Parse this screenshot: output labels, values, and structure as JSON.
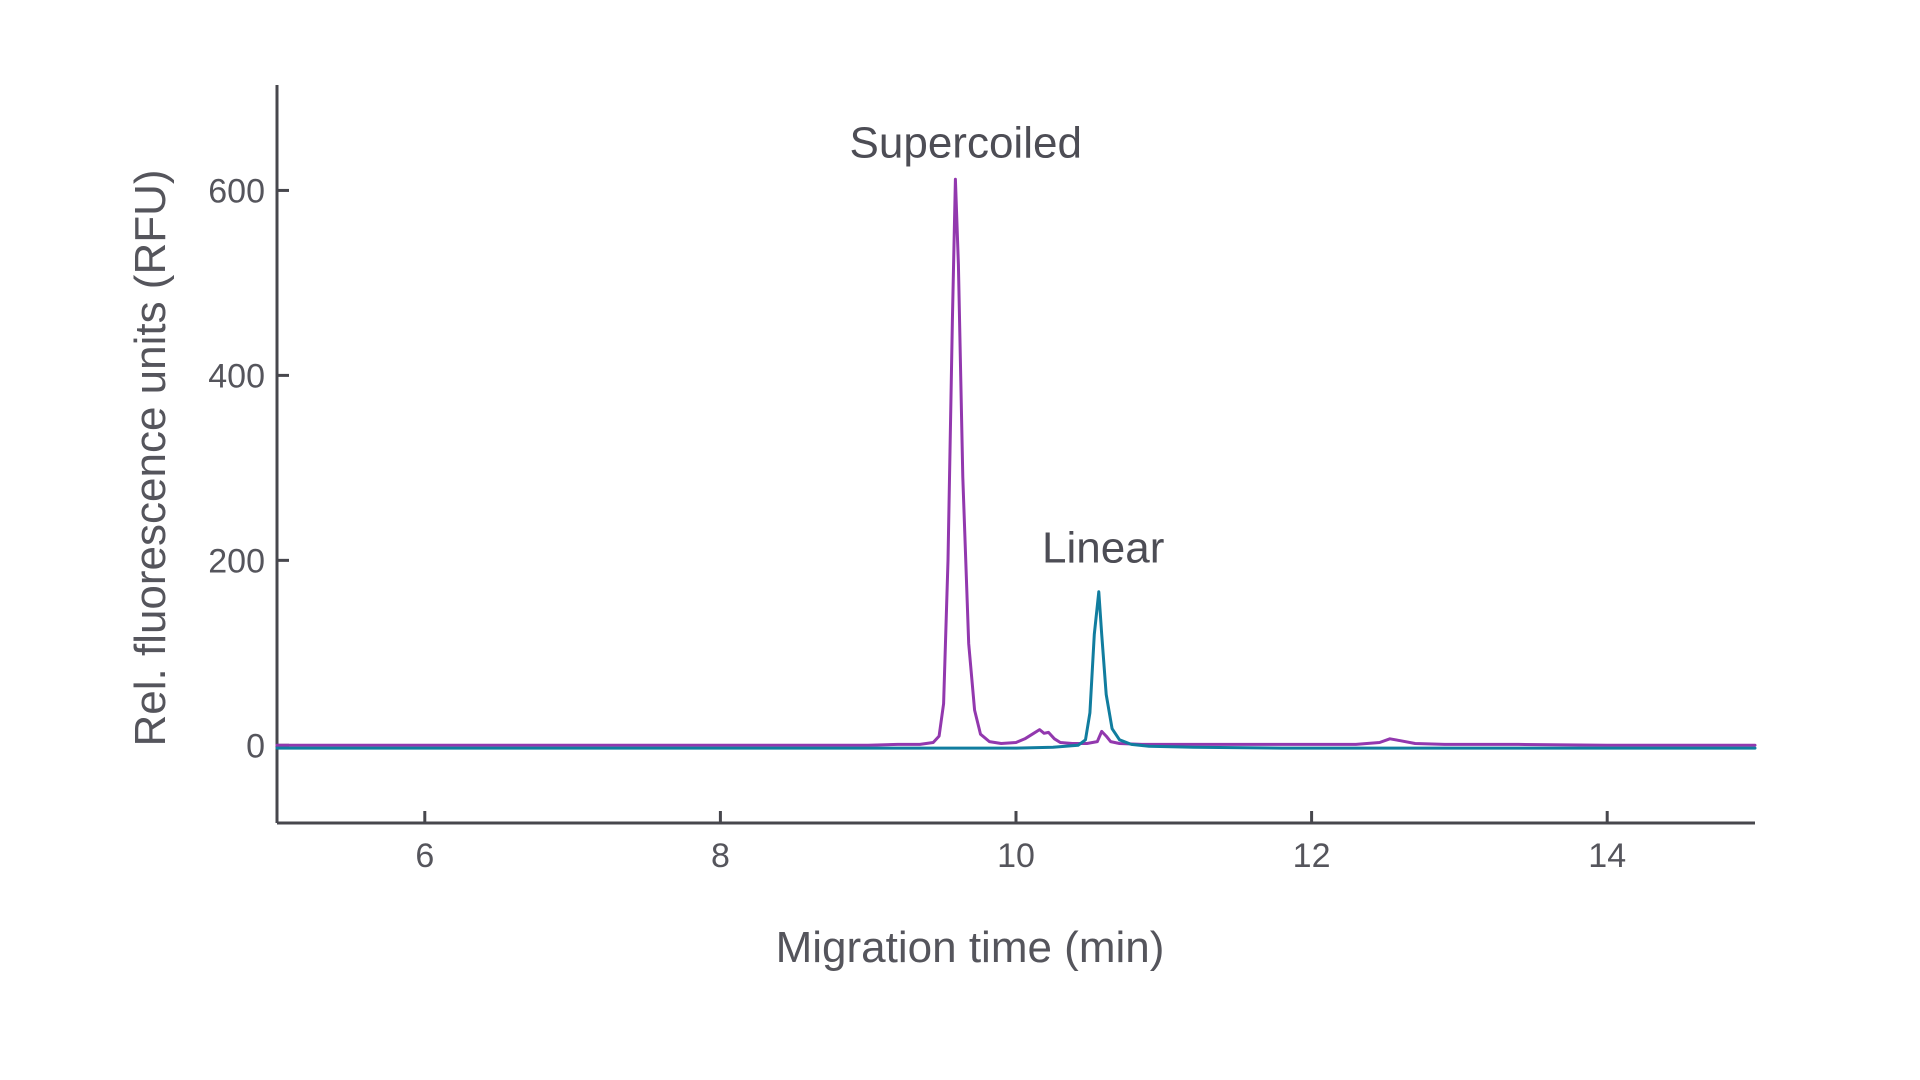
{
  "figure": {
    "background": "#ffffff",
    "axis_color": "#47474d",
    "tick_text_color": "#55555c",
    "annotation_color": "#4d4d55"
  },
  "chart_data": {
    "type": "line",
    "title": "",
    "xlabel": "Migration time (min)",
    "ylabel": "Rel. fluorescence units (RFU)",
    "xlim": [
      5,
      15
    ],
    "ylim": [
      -84,
      714
    ],
    "xticks": [
      "6",
      "8",
      "10",
      "12",
      "14"
    ],
    "yticks": [
      "0",
      "200",
      "400",
      "600"
    ],
    "xtick_values": [
      6,
      8,
      10,
      12,
      14
    ],
    "ytick_values": [
      0,
      200,
      400,
      600
    ],
    "grid": false,
    "legend_position": "none",
    "series": [
      {
        "name": "Supercoiled",
        "color": "#9238ae",
        "peak_apex_min": 9.59,
        "peak_height_rfu": 612,
        "points": [
          [
            5.0,
            0
          ],
          [
            5.5,
            0
          ],
          [
            6.0,
            0
          ],
          [
            6.5,
            0
          ],
          [
            7.0,
            0
          ],
          [
            7.5,
            0
          ],
          [
            8.0,
            0
          ],
          [
            8.5,
            0
          ],
          [
            9.0,
            0
          ],
          [
            9.2,
            1
          ],
          [
            9.35,
            1
          ],
          [
            9.44,
            3
          ],
          [
            9.48,
            10
          ],
          [
            9.51,
            45
          ],
          [
            9.54,
            200
          ],
          [
            9.57,
            460
          ],
          [
            9.59,
            612
          ],
          [
            9.61,
            520
          ],
          [
            9.64,
            290
          ],
          [
            9.68,
            110
          ],
          [
            9.72,
            38
          ],
          [
            9.76,
            12
          ],
          [
            9.82,
            4
          ],
          [
            9.9,
            2
          ],
          [
            10.0,
            3
          ],
          [
            10.06,
            7
          ],
          [
            10.12,
            13
          ],
          [
            10.16,
            17
          ],
          [
            10.19,
            13
          ],
          [
            10.22,
            14
          ],
          [
            10.26,
            7
          ],
          [
            10.3,
            3
          ],
          [
            10.38,
            2
          ],
          [
            10.48,
            2
          ],
          [
            10.55,
            4
          ],
          [
            10.58,
            15
          ],
          [
            10.61,
            10
          ],
          [
            10.64,
            4
          ],
          [
            10.7,
            2
          ],
          [
            10.85,
            1
          ],
          [
            11.2,
            1
          ],
          [
            11.8,
            1
          ],
          [
            12.3,
            1
          ],
          [
            12.46,
            3
          ],
          [
            12.53,
            7
          ],
          [
            12.6,
            5
          ],
          [
            12.7,
            2
          ],
          [
            12.9,
            1
          ],
          [
            13.4,
            1
          ],
          [
            14.0,
            0
          ],
          [
            14.6,
            0
          ],
          [
            15.0,
            0
          ]
        ]
      },
      {
        "name": "Linear",
        "color": "#117d9f",
        "peak_apex_min": 10.56,
        "peak_height_rfu": 166,
        "points": [
          [
            5.0,
            -3
          ],
          [
            5.5,
            -3
          ],
          [
            6.0,
            -3
          ],
          [
            6.5,
            -3
          ],
          [
            7.0,
            -3
          ],
          [
            7.5,
            -3
          ],
          [
            8.0,
            -3
          ],
          [
            8.5,
            -3
          ],
          [
            9.0,
            -3
          ],
          [
            9.5,
            -3
          ],
          [
            10.0,
            -3
          ],
          [
            10.25,
            -2
          ],
          [
            10.42,
            0
          ],
          [
            10.47,
            6
          ],
          [
            10.5,
            35
          ],
          [
            10.53,
            120
          ],
          [
            10.56,
            166
          ],
          [
            10.58,
            120
          ],
          [
            10.61,
            55
          ],
          [
            10.65,
            18
          ],
          [
            10.7,
            6
          ],
          [
            10.78,
            1
          ],
          [
            10.9,
            -1
          ],
          [
            11.2,
            -2
          ],
          [
            11.8,
            -3
          ],
          [
            12.4,
            -3
          ],
          [
            13.0,
            -3
          ],
          [
            13.6,
            -3
          ],
          [
            14.2,
            -3
          ],
          [
            15.0,
            -3
          ]
        ]
      }
    ],
    "annotations": [
      {
        "text": "Supercoiled",
        "t": 9.66,
        "rfu": 651,
        "series": "Supercoiled"
      },
      {
        "text": "Linear",
        "t": 10.59,
        "rfu": 213,
        "series": "Linear"
      }
    ]
  }
}
